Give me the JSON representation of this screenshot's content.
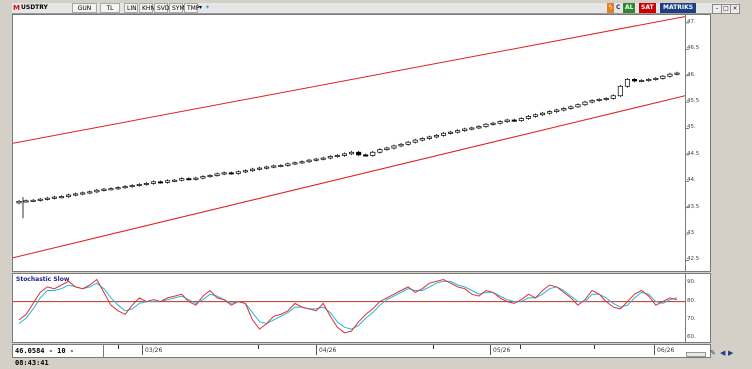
{
  "toolbar": {
    "symbol": "USDTRY",
    "period": "GUN",
    "currency": "TL",
    "scale": "LIN",
    "buttons": [
      "KHN",
      "SVD",
      "SYM",
      "TMP"
    ],
    "buy": "AL",
    "sell": "SAT",
    "brand": "MATRIKS",
    "letters": [
      "M",
      "C"
    ]
  },
  "price_axis": {
    "labels": [
      "47.",
      "46.5",
      "46.",
      "45.5",
      "45.",
      "44.5",
      "44.",
      "43.5",
      "43.",
      "42.5"
    ]
  },
  "price_axis_values": [
    47.0,
    46.5,
    46.0,
    45.5,
    45.0,
    44.5,
    44.0,
    43.5,
    43.0,
    42.5
  ],
  "study": {
    "title": "Stochastic Slow",
    "labels": [
      "90.",
      "80.",
      "70.",
      "60."
    ],
    "values": [
      90,
      80,
      70,
      60
    ],
    "threshold": 80
  },
  "readout": "46.0584 - 10 - 08:43:41",
  "time_axis": {
    "labels": [
      "03/26",
      "04/26",
      "05/26",
      "06/26"
    ]
  },
  "colors": {
    "channel": "#e02020",
    "k_line": "#e03030",
    "d_line": "#20b8e0",
    "candle": "#000000",
    "brand": "#1d3f86"
  },
  "chart_data": {
    "type": "candlestick",
    "ylim": [
      42.3,
      47.15
    ],
    "closes": [
      43.62,
      43.63,
      43.64,
      43.66,
      43.68,
      43.7,
      43.71,
      43.74,
      43.76,
      43.78,
      43.8,
      43.83,
      43.85,
      43.86,
      43.88,
      43.9,
      43.92,
      43.94,
      43.96,
      43.99,
      43.98,
      44.01,
      44.02,
      44.05,
      44.04,
      44.06,
      44.09,
      44.11,
      44.14,
      44.16,
      44.15,
      44.18,
      44.2,
      44.23,
      44.25,
      44.27,
      44.29,
      44.3,
      44.33,
      44.35,
      44.37,
      44.4,
      44.42,
      44.44,
      44.47,
      44.49,
      44.52,
      44.55,
      44.5,
      44.49,
      44.55,
      44.6,
      44.63,
      44.67,
      44.7,
      44.74,
      44.78,
      44.81,
      44.84,
      44.87,
      44.91,
      44.93,
      44.96,
      44.99,
      45.01,
      45.04,
      45.08,
      45.1,
      45.13,
      45.16,
      45.15,
      45.19,
      45.23,
      45.26,
      45.29,
      45.32,
      45.35,
      45.38,
      45.41,
      45.45,
      45.5,
      45.53,
      45.55,
      45.57,
      45.62,
      45.8,
      45.93,
      45.9,
      45.91,
      45.93,
      45.95,
      45.99,
      46.03,
      46.05
    ],
    "stoch_k": [
      70,
      73,
      79,
      85,
      88,
      87,
      89,
      91,
      88,
      87,
      89,
      92,
      85,
      78,
      75,
      73,
      78,
      82,
      80,
      81,
      80,
      82,
      83,
      84,
      80,
      78,
      83,
      86,
      82,
      81,
      78,
      80,
      79,
      70,
      65,
      68,
      72,
      73,
      75,
      79,
      77,
      76,
      75,
      79,
      72,
      66,
      63,
      64,
      69,
      73,
      76,
      80,
      82,
      84,
      86,
      88,
      85,
      87,
      90,
      91,
      92,
      90,
      88,
      87,
      84,
      83,
      86,
      85,
      82,
      80,
      79,
      81,
      84,
      82,
      86,
      89,
      88,
      85,
      82,
      78,
      81,
      86,
      84,
      80,
      77,
      76,
      80,
      84,
      86,
      83,
      78,
      80,
      82,
      81
    ],
    "stoch_d": [
      68,
      71,
      76,
      82,
      86,
      86,
      87,
      89,
      88,
      87,
      88,
      90,
      87,
      82,
      78,
      75,
      76,
      79,
      80,
      80,
      80,
      81,
      82,
      83,
      81,
      79,
      81,
      84,
      83,
      81,
      79,
      80,
      79,
      74,
      69,
      68,
      70,
      72,
      74,
      77,
      77,
      76,
      76,
      77,
      74,
      69,
      66,
      65,
      67,
      71,
      74,
      78,
      81,
      83,
      85,
      87,
      86,
      86,
      88,
      90,
      91,
      91,
      89,
      88,
      86,
      84,
      85,
      85,
      83,
      81,
      80,
      80,
      82,
      82,
      84,
      87,
      88,
      86,
      83,
      80,
      80,
      84,
      84,
      82,
      79,
      77,
      78,
      82,
      85,
      84,
      80,
      79,
      81,
      82
    ]
  }
}
